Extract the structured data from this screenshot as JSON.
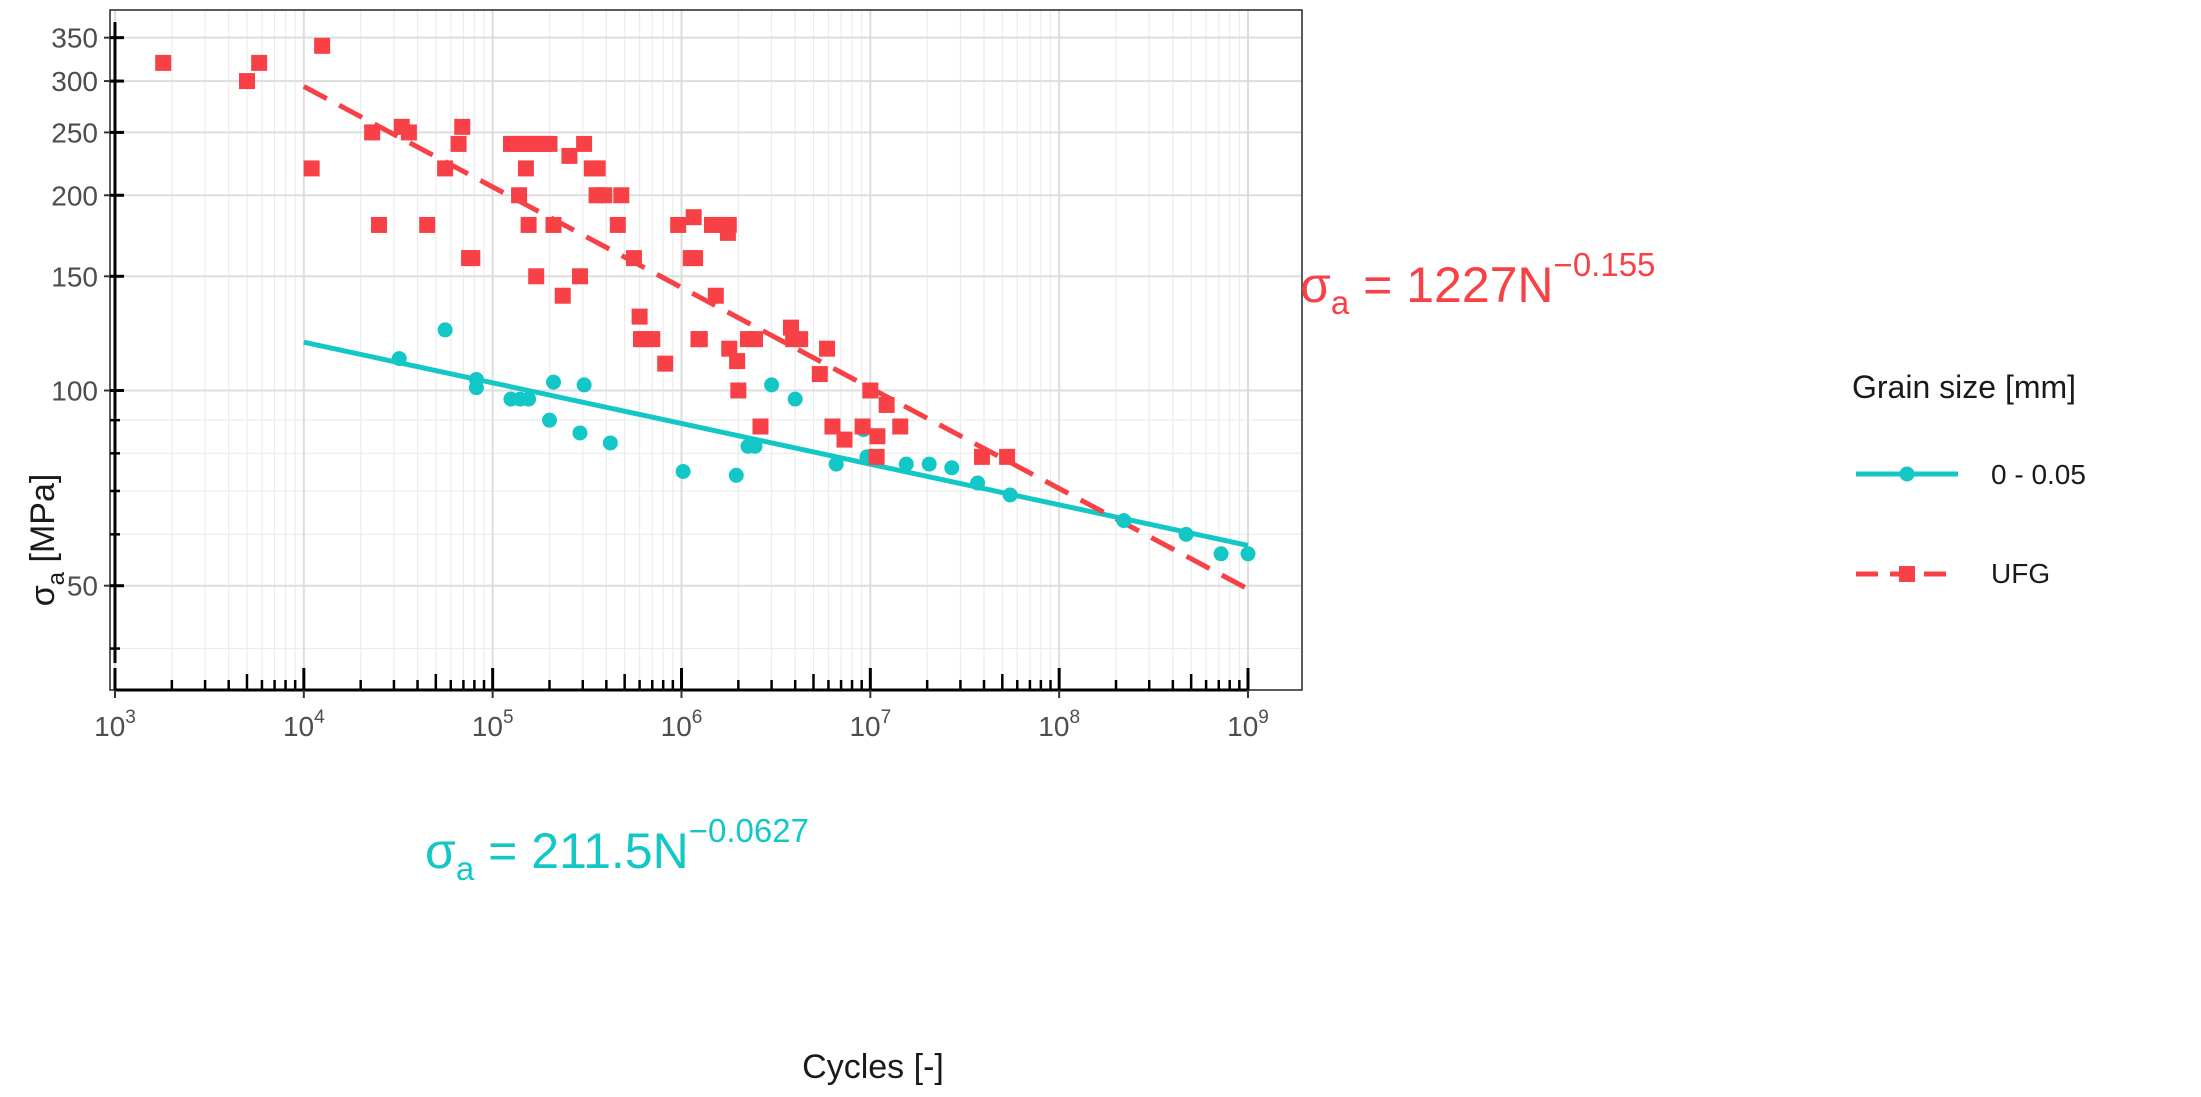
{
  "chart_data": {
    "type": "scatter",
    "title": "",
    "xlabel": "Cycles [-]",
    "ylabel_main": "σ",
    "ylabel_sub": "a",
    "ylabel_rest": " [MPa]",
    "x_scale": "log",
    "y_scale": "log",
    "xlim": [
      1000,
      1000000000
    ],
    "ylim": [
      38,
      370
    ],
    "x_ticks": [
      {
        "value": 1000,
        "base": "10",
        "exp": "3"
      },
      {
        "value": 10000,
        "base": "10",
        "exp": "4"
      },
      {
        "value": 100000,
        "base": "10",
        "exp": "5"
      },
      {
        "value": 1000000,
        "base": "10",
        "exp": "6"
      },
      {
        "value": 10000000,
        "base": "10",
        "exp": "7"
      },
      {
        "value": 100000000,
        "base": "10",
        "exp": "8"
      },
      {
        "value": 1000000000,
        "base": "10",
        "exp": "9"
      }
    ],
    "y_ticks": [
      {
        "value": 50,
        "label": "50"
      },
      {
        "value": 100,
        "label": "100"
      },
      {
        "value": 150,
        "label": "150"
      },
      {
        "value": 200,
        "label": "200"
      },
      {
        "value": 250,
        "label": "250"
      },
      {
        "value": 300,
        "label": "300"
      },
      {
        "value": 350,
        "label": "350"
      }
    ],
    "grid": true,
    "legend": {
      "title": "Grain size [mm]",
      "position": "right",
      "entries": [
        "0 - 0.05",
        "UFG"
      ]
    },
    "series": [
      {
        "name": "0 - 0.05",
        "color": "#14C7C7",
        "marker": "circle",
        "fit_line": "solid",
        "fit": {
          "a": 211.5,
          "b": -0.0627,
          "x_range": [
            10000,
            1000000000
          ]
        },
        "equation": {
          "lhs": "σ",
          "sub": "a",
          "mid": " = 211.5N",
          "exp": "−0.0627"
        },
        "points": [
          [
            32000,
            112
          ],
          [
            56000,
            124
          ],
          [
            82000,
            104
          ],
          [
            82000,
            101
          ],
          [
            125000,
            97
          ],
          [
            140000,
            97
          ],
          [
            155000,
            97
          ],
          [
            200000,
            90
          ],
          [
            210000,
            103
          ],
          [
            290000,
            86
          ],
          [
            305000,
            102
          ],
          [
            420000,
            83
          ],
          [
            1020000,
            75
          ],
          [
            1950000,
            74
          ],
          [
            2250000,
            82
          ],
          [
            2450000,
            82
          ],
          [
            3000000,
            102
          ],
          [
            4000000,
            97
          ],
          [
            6600000,
            77
          ],
          [
            9200000,
            87
          ],
          [
            9600000,
            79
          ],
          [
            15500000,
            77
          ],
          [
            20500000,
            77
          ],
          [
            27000000,
            76
          ],
          [
            37000000,
            72
          ],
          [
            55000000,
            69
          ],
          [
            220000000,
            63
          ],
          [
            470000000,
            60
          ],
          [
            720000000,
            56
          ],
          [
            1000000000,
            56
          ]
        ]
      },
      {
        "name": "UFG",
        "color": "#F84146",
        "marker": "square",
        "fit_line": "dashed",
        "fit": {
          "a": 1227,
          "b": -0.155,
          "x_range": [
            10000,
            1000000000
          ]
        },
        "equation": {
          "lhs": "σ",
          "sub": "a",
          "mid": " = 1227N",
          "exp": "−0.155"
        },
        "points": [
          [
            1800,
            320
          ],
          [
            5000,
            300
          ],
          [
            5800,
            320
          ],
          [
            11000,
            220
          ],
          [
            12500,
            340
          ],
          [
            23000,
            250
          ],
          [
            25000,
            180
          ],
          [
            33000,
            255
          ],
          [
            36000,
            250
          ],
          [
            45000,
            180
          ],
          [
            56000,
            220
          ],
          [
            66000,
            240
          ],
          [
            69000,
            255
          ],
          [
            75000,
            160
          ],
          [
            78000,
            160
          ],
          [
            125000,
            240
          ],
          [
            135000,
            240
          ],
          [
            138000,
            200
          ],
          [
            145000,
            240
          ],
          [
            150000,
            220
          ],
          [
            155000,
            180
          ],
          [
            160000,
            240
          ],
          [
            170000,
            150
          ],
          [
            175000,
            240
          ],
          [
            185000,
            240
          ],
          [
            200000,
            240
          ],
          [
            210000,
            180
          ],
          [
            235000,
            140
          ],
          [
            255000,
            230
          ],
          [
            290000,
            150
          ],
          [
            305000,
            240
          ],
          [
            335000,
            220
          ],
          [
            355000,
            200
          ],
          [
            360000,
            220
          ],
          [
            390000,
            200
          ],
          [
            460000,
            180
          ],
          [
            480000,
            200
          ],
          [
            560000,
            160
          ],
          [
            600000,
            130
          ],
          [
            610000,
            120
          ],
          [
            640000,
            120
          ],
          [
            700000,
            120
          ],
          [
            820000,
            110
          ],
          [
            960000,
            180
          ],
          [
            1120000,
            160
          ],
          [
            1160000,
            185
          ],
          [
            1180000,
            160
          ],
          [
            1230000,
            120
          ],
          [
            1250000,
            120
          ],
          [
            1450000,
            180
          ],
          [
            1520000,
            140
          ],
          [
            1620000,
            180
          ],
          [
            1760000,
            175
          ],
          [
            1780000,
            180
          ],
          [
            1790000,
            116
          ],
          [
            1970000,
            111
          ],
          [
            2000000,
            100
          ],
          [
            2250000,
            120
          ],
          [
            2450000,
            120
          ],
          [
            2620000,
            88
          ],
          [
            3800000,
            125
          ],
          [
            3900000,
            120
          ],
          [
            4250000,
            120
          ],
          [
            5400000,
            106
          ],
          [
            5900000,
            116
          ],
          [
            6300000,
            88
          ],
          [
            7300000,
            84
          ],
          [
            9100000,
            88
          ],
          [
            10000000,
            100
          ],
          [
            10800000,
            79
          ],
          [
            10900000,
            85
          ],
          [
            12200000,
            95
          ],
          [
            14400000,
            88
          ],
          [
            39000000,
            79
          ],
          [
            53000000,
            79
          ]
        ]
      }
    ]
  }
}
